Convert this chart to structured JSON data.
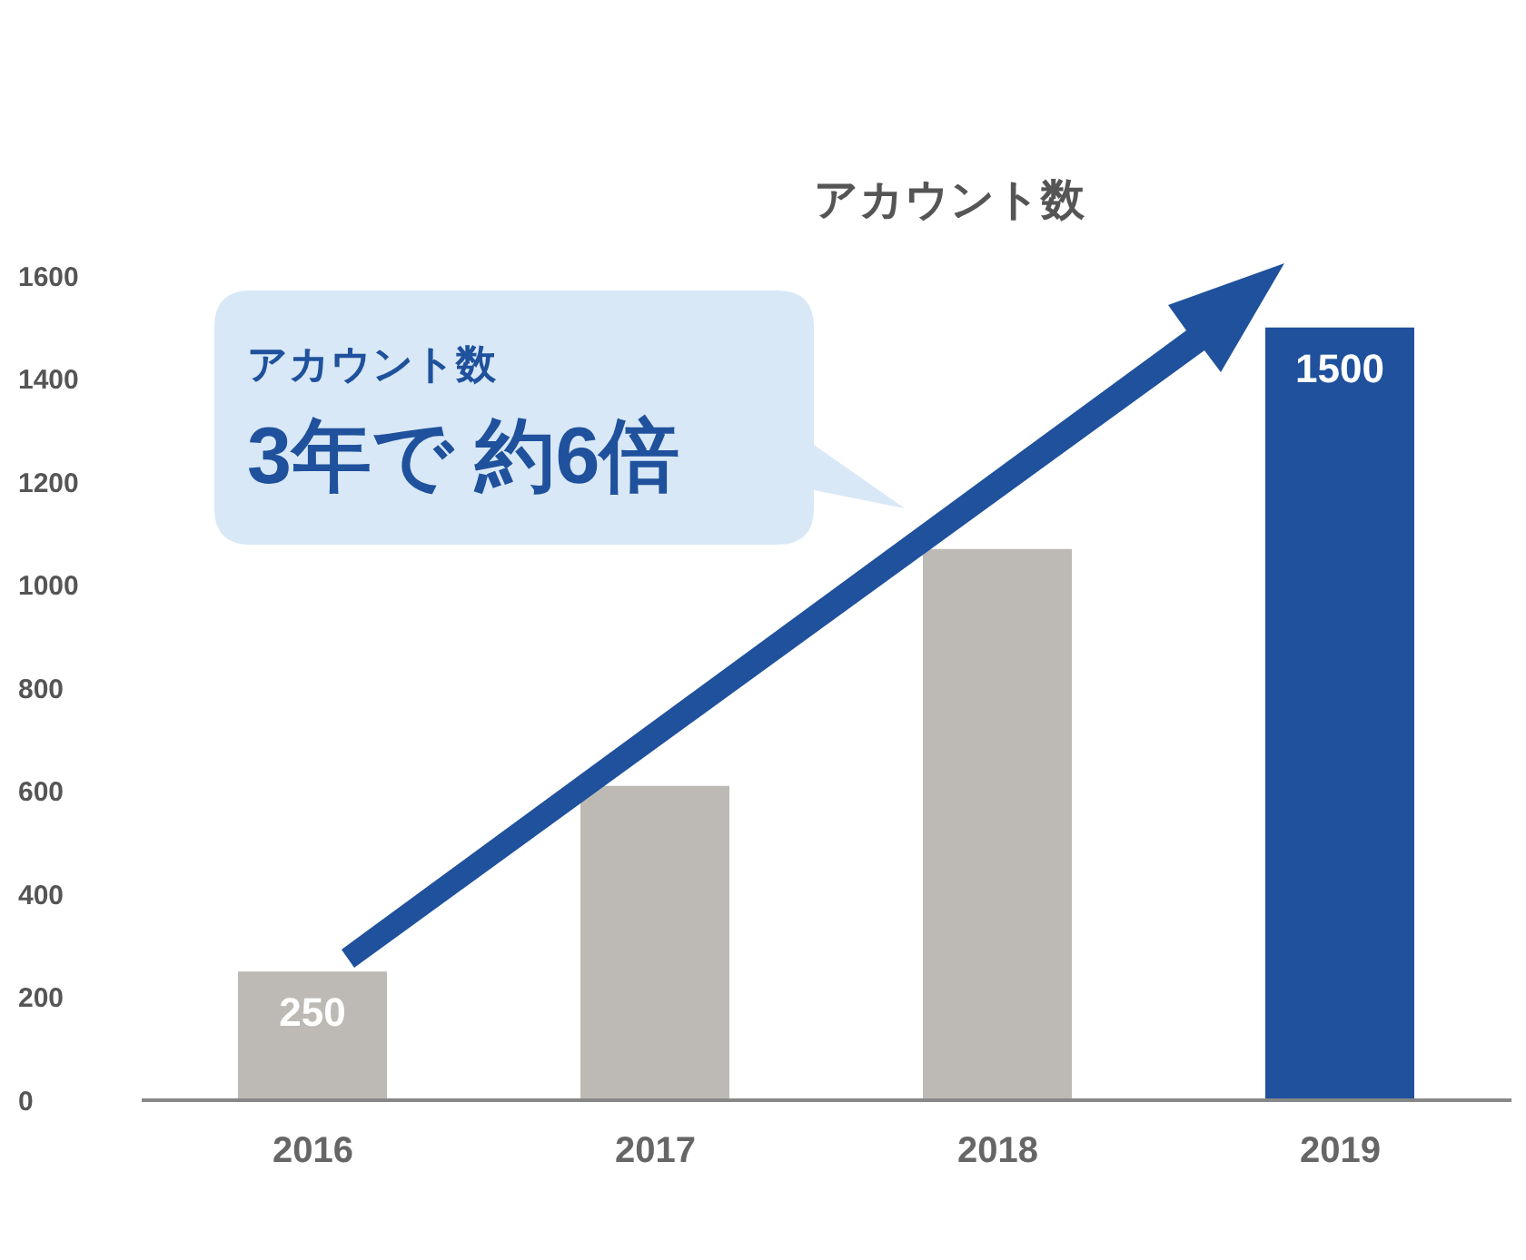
{
  "chart_data": {
    "type": "bar",
    "title": "アカウント数",
    "categories": [
      "2016",
      "2017",
      "2018",
      "2019"
    ],
    "values": [
      250,
      610,
      1070,
      1500
    ],
    "colors": [
      "#bdbab5",
      "#bdbab5",
      "#bdbab5",
      "#1f519c"
    ],
    "value_labels": [
      "250",
      null,
      null,
      "1500"
    ],
    "ylim": [
      0,
      1600
    ],
    "yticks": [
      0,
      200,
      400,
      600,
      800,
      1000,
      1200,
      1400,
      1600
    ],
    "annotations": [
      "アカウント数",
      "3年で 約6倍"
    ]
  }
}
